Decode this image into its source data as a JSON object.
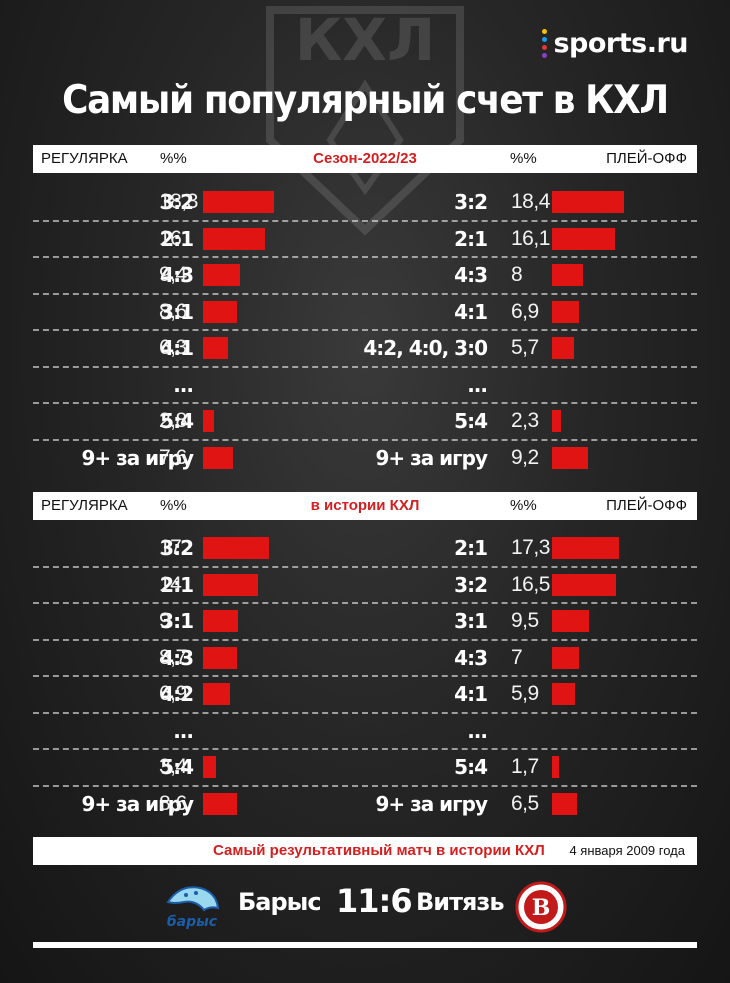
{
  "logo": {
    "text": "sports.ru",
    "dot_colors": [
      "#f5c400",
      "#1e9be9",
      "#e03a3a",
      "#8b3fc9"
    ]
  },
  "bg_logo": {
    "text": "КХЛ"
  },
  "title": "Самый популярный счет в КХЛ",
  "chart_data": [
    {
      "type": "bar",
      "header": {
        "left": "РЕГУЛЯРКА",
        "pct": "%%",
        "center": "Сезон-2022/23"
      },
      "categories": [
        "3:2",
        "2:1",
        "4:3",
        "3:1",
        "4:1",
        "...",
        "5:4",
        "9+ за игру"
      ],
      "values": [
        18.3,
        16,
        9.4,
        8.6,
        6.3,
        null,
        2.8,
        7.6
      ],
      "value_labels": [
        "18,3",
        "16",
        "9,4",
        "8,6",
        "6,3",
        "",
        "2,8",
        "7,6"
      ]
    },
    {
      "type": "bar",
      "header": {
        "pct": "%%",
        "right": "ПЛЕЙ-ОФФ"
      },
      "categories": [
        "3:2",
        "2:1",
        "4:3",
        "4:1",
        "4:2, 4:0, 3:0",
        "...",
        "5:4",
        "9+ за игру"
      ],
      "values": [
        18.4,
        16.1,
        8,
        6.9,
        5.7,
        null,
        2.3,
        9.2
      ],
      "value_labels": [
        "18,4",
        "16,1",
        "8",
        "6,9",
        "5,7",
        "",
        "2,3",
        "9,2"
      ]
    },
    {
      "type": "bar",
      "header": {
        "left": "РЕГУЛЯРКА",
        "pct": "%%",
        "center": "в истории КХЛ"
      },
      "categories": [
        "3:2",
        "2:1",
        "3:1",
        "4:3",
        "4:2",
        "...",
        "5:4",
        "9+ за игру"
      ],
      "values": [
        17,
        14,
        9,
        8.7,
        6.9,
        null,
        3.4,
        8.6
      ],
      "value_labels": [
        "17",
        "14",
        "9",
        "8,7",
        "6,9",
        "",
        "3,4",
        "8,6"
      ]
    },
    {
      "type": "bar",
      "header": {
        "pct": "%%",
        "right": "ПЛЕЙ-ОФФ"
      },
      "categories": [
        "2:1",
        "3:2",
        "3:1",
        "4:3",
        "4:1",
        "...",
        "5:4",
        "9+ за игру"
      ],
      "values": [
        17.3,
        16.5,
        9.5,
        7,
        5.9,
        null,
        1.7,
        6.5
      ],
      "value_labels": [
        "17,3",
        "16,5",
        "9,5",
        "7",
        "5,9",
        "",
        "1,7",
        "6,5"
      ]
    }
  ],
  "footer": {
    "title": "Самый результативный матч в истории КХЛ",
    "date": "4 января 2009 года",
    "team_home": "Барыс",
    "score": "11:6",
    "team_away": "Витязь",
    "home_logo_text": "барыс",
    "away_logo_text": "В"
  },
  "colors": {
    "bar": "#e11414",
    "accent": "#d31f1f"
  }
}
